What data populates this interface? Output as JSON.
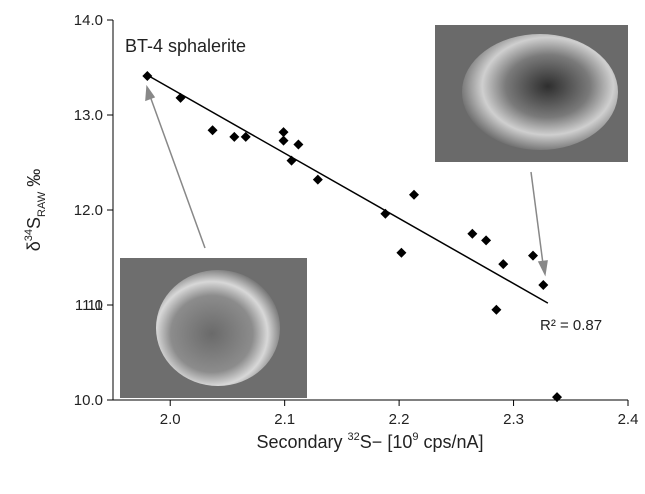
{
  "chart_data": {
    "type": "scatter",
    "annotation": "BT-4 sphalerite",
    "r_squared_label": "R² = 0.87",
    "x_label_parts": [
      "Secondary ",
      "32",
      "S− [10",
      "9",
      " cps/nA]"
    ],
    "y_label_parts": [
      "δ",
      "34",
      "S",
      "RAW",
      " ‰"
    ],
    "series": [
      {
        "color": "#000000",
        "x": [
          1.98,
          2.009,
          2.037,
          2.056,
          2.066,
          2.099,
          2.099,
          2.112,
          2.106,
          2.129,
          2.188,
          2.213,
          2.202,
          2.264,
          2.276,
          2.291,
          2.285,
          2.317,
          2.326,
          2.338
        ],
        "values": [
          13.41,
          13.18,
          12.84,
          12.77,
          12.77,
          12.82,
          12.73,
          12.69,
          12.52,
          12.32,
          11.96,
          12.16,
          11.55,
          11.75,
          11.68,
          11.43,
          10.95,
          11.52,
          11.21,
          10.03
        ]
      }
    ],
    "trendline": {
      "x": [
        1.98,
        2.33
      ],
      "y": [
        13.42,
        11.02
      ]
    },
    "xlim": [
      1.95,
      2.4
    ],
    "ylim": [
      10.0,
      14.0
    ],
    "xticks": [
      {
        "value": 2.0,
        "label": "2.0"
      },
      2.1,
      2.2,
      2.3,
      2.4
    ],
    "yticks": [
      {
        "value": 10.0,
        "label": "10.0"
      },
      11,
      {
        "value": 11.0,
        "label": "11.0"
      },
      {
        "value": 12.0,
        "label": "12.0"
      },
      {
        "value": 13.0,
        "label": "13.0"
      },
      {
        "value": 14.0,
        "label": "14.0"
      }
    ]
  }
}
